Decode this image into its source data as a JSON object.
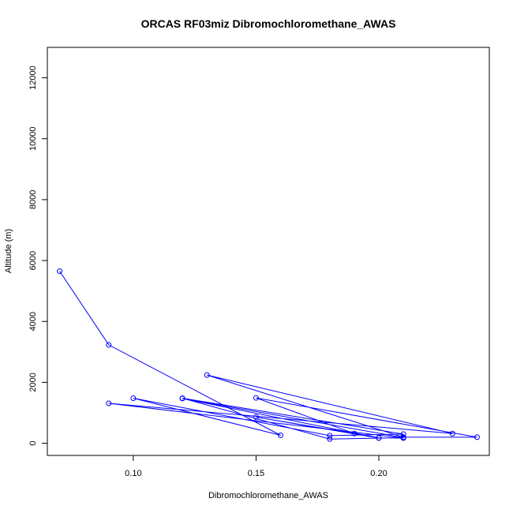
{
  "chart_data": {
    "type": "line",
    "title": "ORCAS RF03miz Dibromochloromethane_AWAS",
    "xlabel": "Dibromochloromethane_AWAS",
    "ylabel": "Altitude (m)",
    "xlim": [
      0.065,
      0.245
    ],
    "ylim": [
      -400,
      13000
    ],
    "x_ticks": [
      0.1,
      0.15,
      0.2
    ],
    "x_tick_labels": [
      "0.10",
      "0.15",
      "0.20"
    ],
    "y_ticks": [
      0,
      2000,
      4000,
      6000,
      8000,
      10000,
      12000
    ],
    "y_tick_labels": [
      "0",
      "2000",
      "4000",
      "6000",
      "8000",
      "10000",
      "12000"
    ],
    "grid": false,
    "markers": "open-circle",
    "series_color": "#0000ff",
    "series": [
      {
        "points": [
          [
            0.07,
            5650
          ],
          [
            0.09,
            3230
          ],
          [
            0.16,
            260
          ],
          [
            0.1,
            1480
          ],
          [
            0.18,
            250
          ],
          [
            0.21,
            300
          ],
          [
            0.12,
            1480
          ],
          [
            0.18,
            140
          ],
          [
            0.21,
            185
          ],
          [
            0.12,
            1470
          ],
          [
            0.2,
            175
          ],
          [
            0.21,
            170
          ],
          [
            0.09,
            1310
          ],
          [
            0.23,
            320
          ],
          [
            0.13,
            2240
          ],
          [
            0.21,
            200
          ],
          [
            0.24,
            200
          ],
          [
            0.15,
            1490
          ],
          [
            0.19,
            320
          ],
          [
            0.15,
            860
          ],
          [
            0.2,
            170
          ]
        ]
      }
    ]
  }
}
